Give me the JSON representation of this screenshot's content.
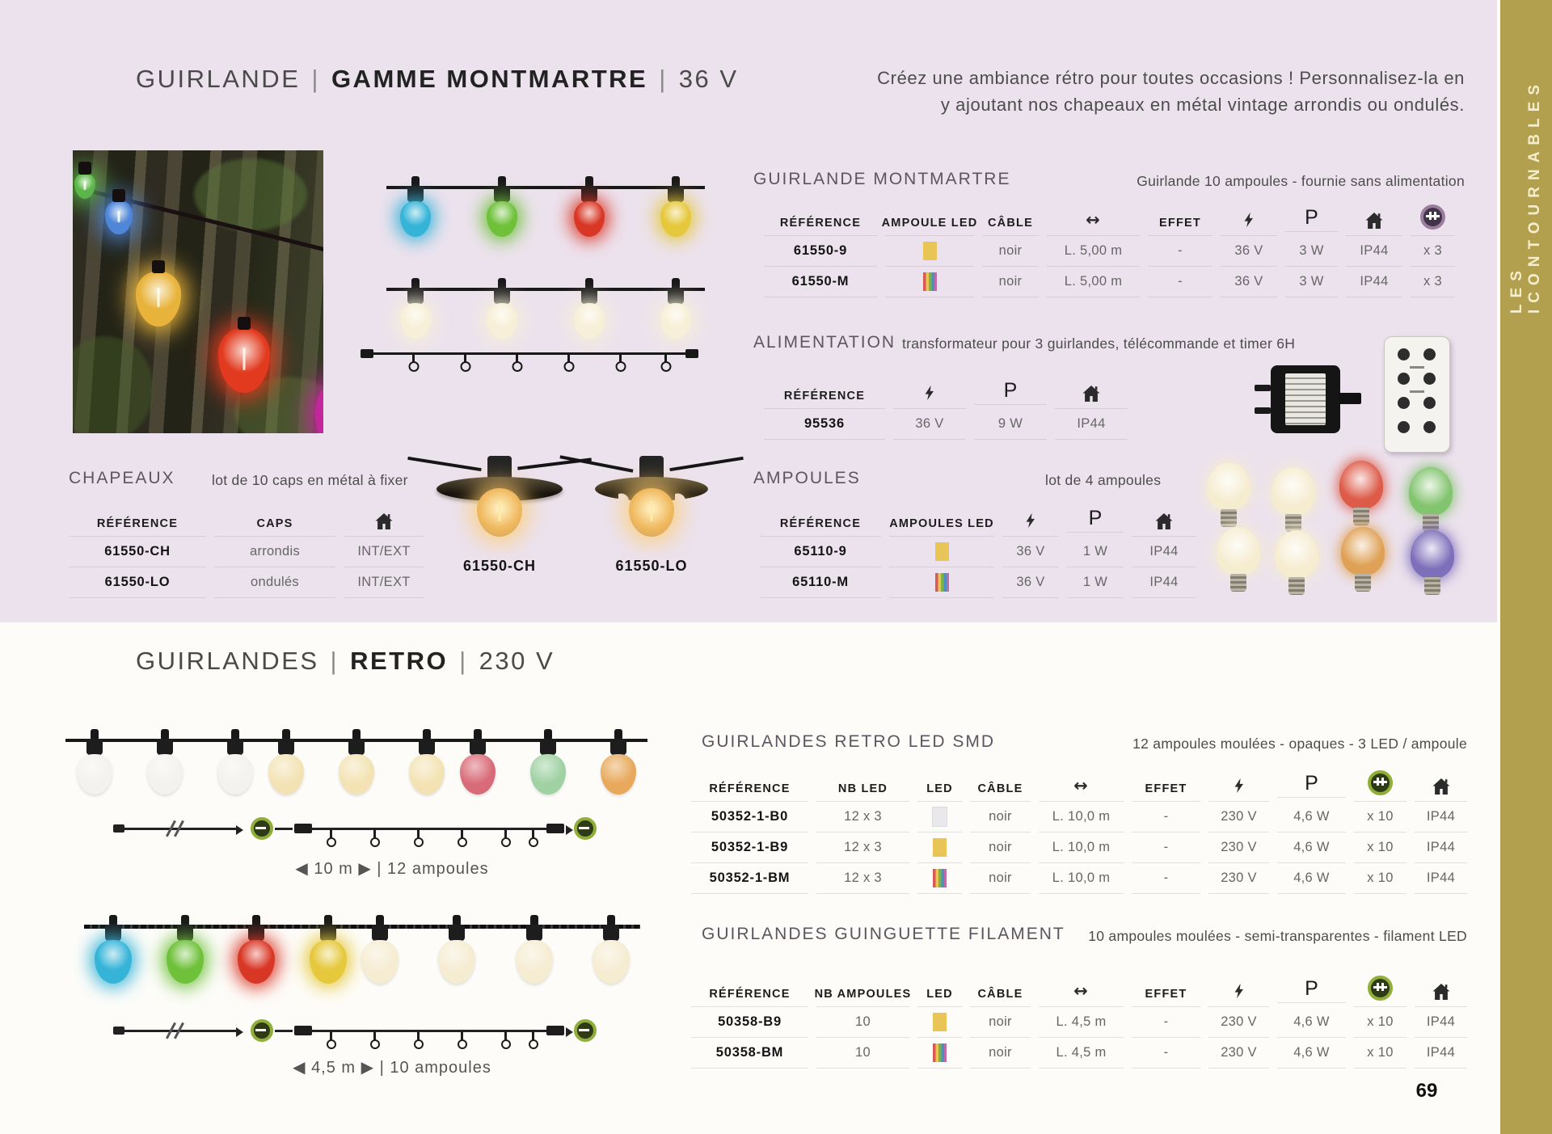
{
  "page_number": "69",
  "sidebar_label": "LES ICONTOURNABLES",
  "colors": {
    "top_background": "#ece2ed",
    "sidebar_gold": "#b3a04f",
    "accent_yellow": "#e9c558"
  },
  "top": {
    "title1": "GUIRLANDE",
    "title2": "GAMME MONTMARTRE",
    "title3": "36 V",
    "intro1": "Créez une ambiance rétro pour toutes occasions ! Personnalisez-la en",
    "intro2": "y ajoutant nos chapeaux en métal vintage arrondis ou ondulés.",
    "montmartre": {
      "title": "GUIRLANDE MONTMARTRE",
      "subtitle": "Guirlande 10 ampoules - fournie sans alimentation",
      "columns": [
        {
          "header": "RÉFÉRENCE",
          "cell": "ref"
        },
        {
          "header": "AMPOULE LED",
          "cell": "swatch"
        },
        {
          "header": "CÂBLE",
          "cell": "text"
        },
        {
          "icon": "arrows",
          "cell": "text"
        },
        {
          "header": "EFFET",
          "cell": "text"
        },
        {
          "icon": "bolt",
          "cell": "text"
        },
        {
          "header": "P",
          "hclass": "p-big",
          "cell": "text"
        },
        {
          "icon": "house",
          "cell": "text"
        },
        {
          "icon": "connect-purple",
          "cell": "text"
        }
      ],
      "rows": [
        [
          "61550-9",
          "yellow",
          "noir",
          "L. 5,00 m",
          "-",
          "36 V",
          "3 W",
          "IP44",
          "x 3"
        ],
        [
          "61550-M",
          "multi",
          "noir",
          "L. 5,00 m",
          "-",
          "36 V",
          "3 W",
          "IP44",
          "x 3"
        ]
      ]
    },
    "alimentation": {
      "title": "ALIMENTATION",
      "subtitle": "transformateur pour 3 guirlandes, télécommande et timer 6H",
      "columns": [
        {
          "header": "RÉFÉRENCE",
          "cell": "ref"
        },
        {
          "icon": "bolt",
          "cell": "text"
        },
        {
          "header": "P",
          "hclass": "p-big",
          "cell": "text"
        },
        {
          "icon": "house",
          "cell": "text"
        }
      ],
      "rows": [
        [
          "95536",
          "36 V",
          "9 W",
          "IP44"
        ]
      ]
    },
    "chapeaux": {
      "title": "CHAPEAUX",
      "subtitle": "lot de 10 caps en métal à fixer",
      "columns": [
        {
          "header": "RÉFÉRENCE",
          "cell": "ref"
        },
        {
          "header": "CAPS",
          "cell": "text"
        },
        {
          "icon": "house",
          "cell": "text"
        }
      ],
      "rows": [
        [
          "61550-CH",
          "arrondis",
          "INT/EXT"
        ],
        [
          "61550-LO",
          "ondulés",
          "INT/EXT"
        ]
      ],
      "figure_label_1": "61550-CH",
      "figure_label_2": "61550-LO"
    },
    "ampoules": {
      "title": "AMPOULES",
      "subtitle": "lot de 4 ampoules",
      "columns": [
        {
          "header": "RÉFÉRENCE",
          "cell": "ref"
        },
        {
          "header": "AMPOULES LED",
          "cell": "swatch"
        },
        {
          "icon": "bolt",
          "cell": "text"
        },
        {
          "header": "P",
          "hclass": "p-big",
          "cell": "text"
        },
        {
          "icon": "house",
          "cell": "text"
        }
      ],
      "rows": [
        [
          "65110-9",
          "yellow",
          "36 V",
          "1 W",
          "IP44"
        ],
        [
          "65110-M",
          "multi",
          "36 V",
          "1 W",
          "IP44"
        ]
      ]
    }
  },
  "bottom": {
    "title1": "GUIRLANDES",
    "title2": "RETRO",
    "title3": "230 V",
    "caption1": "◀ 10 m ▶ | 12 ampoules",
    "caption2": "◀ 4,5 m ▶ | 10 ampoules",
    "smd": {
      "title": "GUIRLANDES RETRO LED SMD",
      "subtitle": "12 ampoules moulées - opaques - 3 LED / ampoule",
      "columns": [
        {
          "header": "RÉFÉRENCE",
          "cell": "ref"
        },
        {
          "header": "NB LED",
          "cell": "text"
        },
        {
          "header": "LED",
          "cell": "swatch"
        },
        {
          "header": "CÂBLE",
          "cell": "text"
        },
        {
          "icon": "arrows",
          "cell": "text"
        },
        {
          "header": "EFFET",
          "cell": "text"
        },
        {
          "icon": "bolt",
          "cell": "text"
        },
        {
          "header": "P",
          "hclass": "p-big",
          "cell": "text"
        },
        {
          "icon": "connect-green",
          "cell": "text"
        },
        {
          "icon": "house",
          "cell": "text"
        }
      ],
      "rows": [
        [
          "50352-1-B0",
          "12 x 3",
          "white",
          "noir",
          "L. 10,0 m",
          "-",
          "230 V",
          "4,6 W",
          "x 10",
          "IP44"
        ],
        [
          "50352-1-B9",
          "12 x 3",
          "yellow",
          "noir",
          "L. 10,0 m",
          "-",
          "230 V",
          "4,6 W",
          "x 10",
          "IP44"
        ],
        [
          "50352-1-BM",
          "12 x 3",
          "multi",
          "noir",
          "L. 10,0 m",
          "-",
          "230 V",
          "4,6 W",
          "x 10",
          "IP44"
        ]
      ]
    },
    "filament": {
      "title": "GUIRLANDES GUINGUETTE FILAMENT",
      "subtitle": "10 ampoules moulées - semi-transparentes - filament LED",
      "columns": [
        {
          "header": "RÉFÉRENCE",
          "cell": "ref"
        },
        {
          "header": "NB AMPOULES",
          "cell": "text"
        },
        {
          "header": "LED",
          "cell": "swatch"
        },
        {
          "header": "CÂBLE",
          "cell": "text"
        },
        {
          "icon": "arrows",
          "cell": "text"
        },
        {
          "header": "EFFET",
          "cell": "text"
        },
        {
          "icon": "bolt",
          "cell": "text"
        },
        {
          "header": "P",
          "hclass": "p-big",
          "cell": "text"
        },
        {
          "icon": "connect-green",
          "cell": "text"
        },
        {
          "icon": "house",
          "cell": "text"
        }
      ],
      "rows": [
        [
          "50358-B9",
          "10",
          "yellow",
          "noir",
          "L. 4,5 m",
          "-",
          "230 V",
          "4,6 W",
          "x 10",
          "IP44"
        ],
        [
          "50358-BM",
          "10",
          "multi",
          "noir",
          "L. 4,5 m",
          "-",
          "230 V",
          "4,6 W",
          "x 10",
          "IP44"
        ]
      ]
    }
  },
  "graphics": {
    "photo_bulbs": [
      "#5cb847",
      "#4f86d8",
      "#e8b33a",
      "#e23a1e",
      "#c2269b"
    ],
    "string_colored": [
      "#35b4d8",
      "#6fc13a",
      "#d93726",
      "#e5c83b"
    ],
    "string_warm": [
      "#f7efd7",
      "#f7efd7",
      "#f7efd7",
      "#f7efd7"
    ],
    "mini_garland_white": [
      "#f4f2ee",
      "#f4f2ee",
      "#f4f2ee"
    ],
    "mini_garland_cream": [
      "#f3e3b4",
      "#f3e3b4",
      "#f3e3b4"
    ],
    "mini_garland_color": [
      "#d96a77",
      "#9fd1a2",
      "#e8a95c"
    ],
    "retro_colored": [
      "#35b4d8",
      "#6fc13a",
      "#d93726",
      "#e5c83b"
    ],
    "retro_warm": [
      "#f6ecd2",
      "#f6ecd2",
      "#f6ecd2",
      "#f6ecd2"
    ],
    "loose_bulbs": [
      "#f6ecd0",
      "#f6ecd0",
      "#f6ecd0",
      "#f6ecd0",
      "#dd5b49",
      "#83c46f",
      "#dfa155",
      "#7e6fba"
    ]
  }
}
